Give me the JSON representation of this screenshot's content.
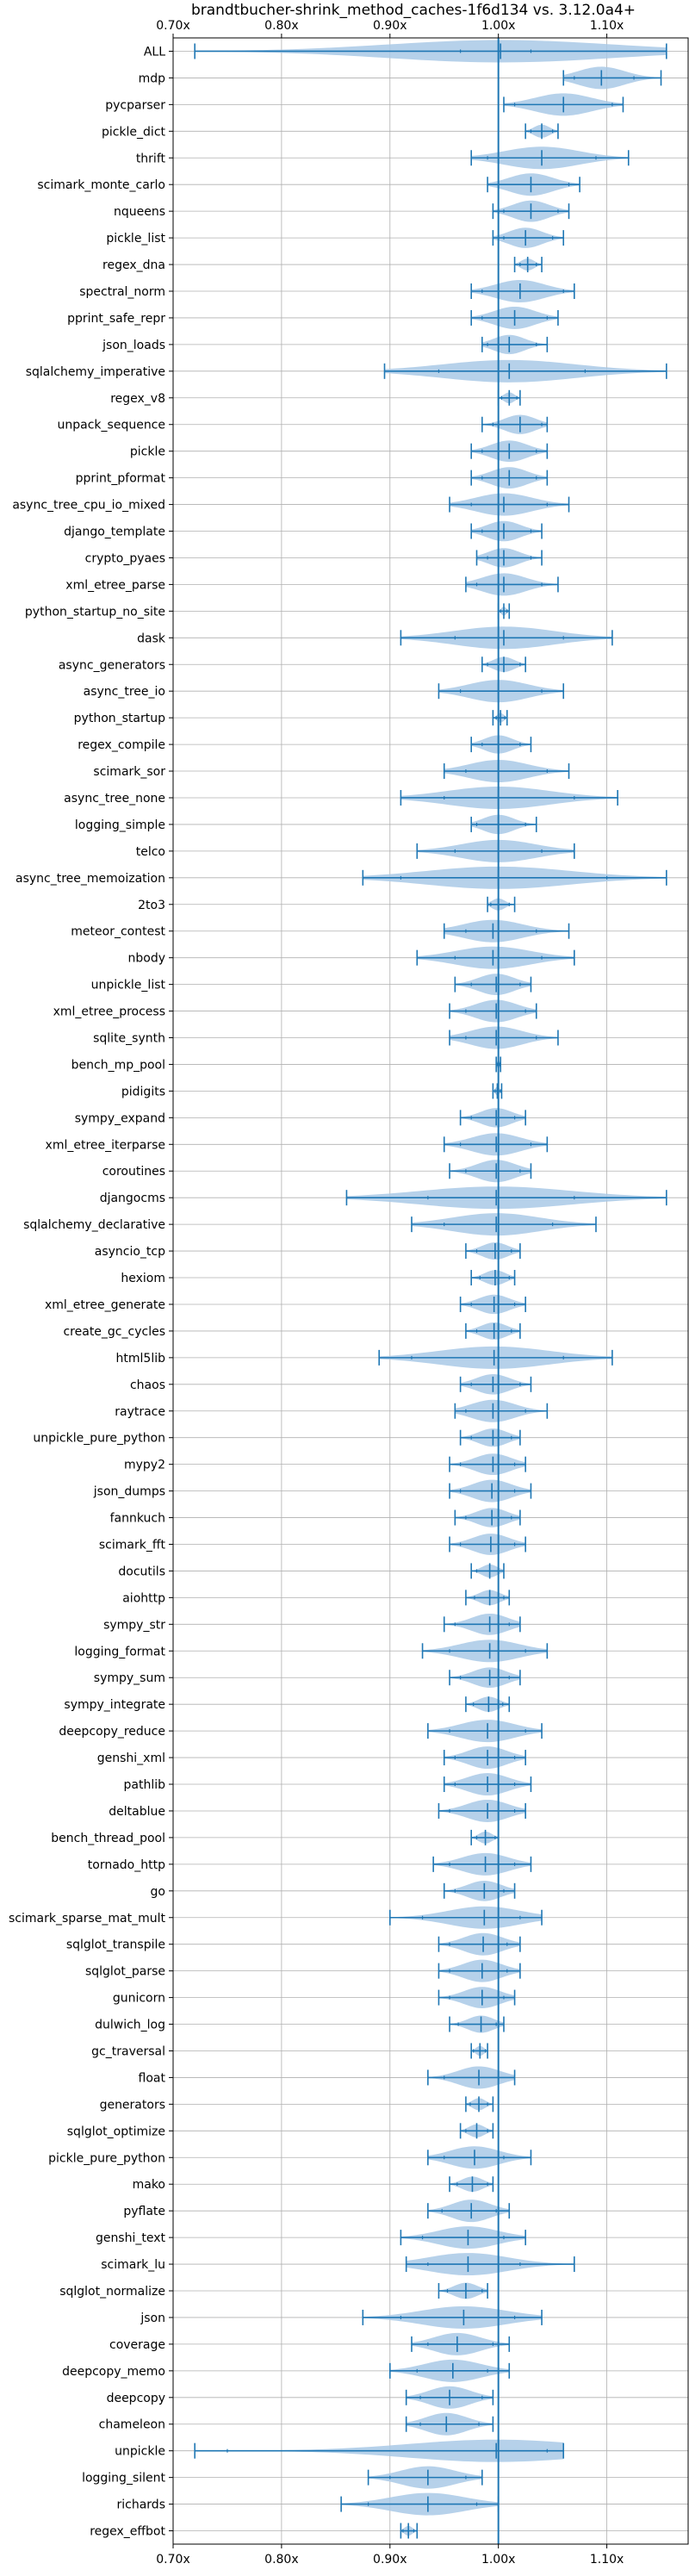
{
  "chart_data": {
    "type": "violin",
    "title": "brandtbucher-shrink_method_caches-1f6d134 vs. 3.12.0a4+",
    "x_ticks": [
      "0.70x",
      "0.80x",
      "0.90x",
      "1.00x",
      "1.10x"
    ],
    "x_tick_values": [
      0.7,
      0.8,
      0.9,
      1.0,
      1.1
    ],
    "xlim": [
      0.7,
      1.175
    ],
    "reference_line": 1.0,
    "grid": true,
    "colors": {
      "violin": "#a9c9e6",
      "line": "#1f77b4",
      "grid": "#b0b0b0"
    },
    "benchmarks": [
      {
        "name": "ALL",
        "min": 0.72,
        "max": 1.155,
        "median": 1.002,
        "lo": 0.965,
        "hi": 1.03
      },
      {
        "name": "mdp",
        "min": 1.06,
        "max": 1.15,
        "median": 1.095,
        "lo": 1.07,
        "hi": 1.125
      },
      {
        "name": "pycparser",
        "min": 1.005,
        "max": 1.115,
        "median": 1.06,
        "lo": 1.015,
        "hi": 1.105
      },
      {
        "name": "pickle_dict",
        "min": 1.025,
        "max": 1.055,
        "median": 1.04,
        "lo": 1.03,
        "hi": 1.05
      },
      {
        "name": "thrift",
        "min": 0.975,
        "max": 1.12,
        "median": 1.04,
        "lo": 0.99,
        "hi": 1.09
      },
      {
        "name": "scimark_monte_carlo",
        "min": 0.99,
        "max": 1.075,
        "median": 1.03,
        "lo": 1.0,
        "hi": 1.065
      },
      {
        "name": "nqueens",
        "min": 0.995,
        "max": 1.065,
        "median": 1.03,
        "lo": 1.005,
        "hi": 1.055
      },
      {
        "name": "pickle_list",
        "min": 0.995,
        "max": 1.06,
        "median": 1.025,
        "lo": 1.005,
        "hi": 1.05
      },
      {
        "name": "regex_dna",
        "min": 1.015,
        "max": 1.04,
        "median": 1.027,
        "lo": 1.02,
        "hi": 1.035
      },
      {
        "name": "spectral_norm",
        "min": 0.975,
        "max": 1.07,
        "median": 1.02,
        "lo": 0.985,
        "hi": 1.06
      },
      {
        "name": "pprint_safe_repr",
        "min": 0.975,
        "max": 1.055,
        "median": 1.015,
        "lo": 0.985,
        "hi": 1.045
      },
      {
        "name": "json_loads",
        "min": 0.985,
        "max": 1.045,
        "median": 1.01,
        "lo": 0.99,
        "hi": 1.035
      },
      {
        "name": "sqlalchemy_imperative",
        "min": 0.895,
        "max": 1.155,
        "median": 1.01,
        "lo": 0.945,
        "hi": 1.08
      },
      {
        "name": "regex_v8",
        "min": 1.0,
        "max": 1.02,
        "median": 1.01,
        "lo": 1.003,
        "hi": 1.017
      },
      {
        "name": "unpack_sequence",
        "min": 0.985,
        "max": 1.045,
        "median": 1.02,
        "lo": 0.995,
        "hi": 1.04
      },
      {
        "name": "pickle",
        "min": 0.975,
        "max": 1.045,
        "median": 1.01,
        "lo": 0.985,
        "hi": 1.035
      },
      {
        "name": "pprint_pformat",
        "min": 0.975,
        "max": 1.045,
        "median": 1.01,
        "lo": 0.985,
        "hi": 1.035
      },
      {
        "name": "async_tree_cpu_io_mixed",
        "min": 0.955,
        "max": 1.065,
        "median": 1.005,
        "lo": 0.975,
        "hi": 1.045
      },
      {
        "name": "django_template",
        "min": 0.975,
        "max": 1.04,
        "median": 1.005,
        "lo": 0.985,
        "hi": 1.03
      },
      {
        "name": "crypto_pyaes",
        "min": 0.98,
        "max": 1.04,
        "median": 1.005,
        "lo": 0.99,
        "hi": 1.03
      },
      {
        "name": "xml_etree_parse",
        "min": 0.97,
        "max": 1.055,
        "median": 1.005,
        "lo": 0.98,
        "hi": 1.04
      },
      {
        "name": "python_startup_no_site",
        "min": 1.0,
        "max": 1.01,
        "median": 1.005,
        "lo": 1.002,
        "hi": 1.008
      },
      {
        "name": "dask",
        "min": 0.91,
        "max": 1.105,
        "median": 1.005,
        "lo": 0.96,
        "hi": 1.06
      },
      {
        "name": "async_generators",
        "min": 0.985,
        "max": 1.025,
        "median": 1.005,
        "lo": 0.99,
        "hi": 1.02
      },
      {
        "name": "async_tree_io",
        "min": 0.945,
        "max": 1.06,
        "median": 1.0,
        "lo": 0.965,
        "hi": 1.04
      },
      {
        "name": "python_startup",
        "min": 0.995,
        "max": 1.008,
        "median": 1.002,
        "lo": 0.998,
        "hi": 1.006
      },
      {
        "name": "regex_compile",
        "min": 0.975,
        "max": 1.03,
        "median": 1.0,
        "lo": 0.985,
        "hi": 1.02
      },
      {
        "name": "scimark_sor",
        "min": 0.95,
        "max": 1.065,
        "median": 1.0,
        "lo": 0.97,
        "hi": 1.045
      },
      {
        "name": "async_tree_none",
        "min": 0.91,
        "max": 1.11,
        "median": 1.0,
        "lo": 0.95,
        "hi": 1.07
      },
      {
        "name": "logging_simple",
        "min": 0.975,
        "max": 1.035,
        "median": 1.0,
        "lo": 0.98,
        "hi": 1.025
      },
      {
        "name": "telco",
        "min": 0.925,
        "max": 1.07,
        "median": 1.0,
        "lo": 0.96,
        "hi": 1.04
      },
      {
        "name": "async_tree_memoization",
        "min": 0.875,
        "max": 1.155,
        "median": 1.0,
        "lo": 0.91,
        "hi": 1.1
      },
      {
        "name": "2to3",
        "min": 0.99,
        "max": 1.015,
        "median": 1.0,
        "lo": 0.993,
        "hi": 1.01
      },
      {
        "name": "meteor_contest",
        "min": 0.95,
        "max": 1.065,
        "median": 0.995,
        "lo": 0.97,
        "hi": 1.035
      },
      {
        "name": "nbody",
        "min": 0.925,
        "max": 1.07,
        "median": 0.995,
        "lo": 0.96,
        "hi": 1.04
      },
      {
        "name": "unpickle_list",
        "min": 0.96,
        "max": 1.03,
        "median": 0.998,
        "lo": 0.975,
        "hi": 1.02
      },
      {
        "name": "xml_etree_process",
        "min": 0.955,
        "max": 1.035,
        "median": 0.998,
        "lo": 0.97,
        "hi": 1.025
      },
      {
        "name": "sqlite_synth",
        "min": 0.955,
        "max": 1.055,
        "median": 0.998,
        "lo": 0.97,
        "hi": 1.035
      },
      {
        "name": "bench_mp_pool",
        "min": 0.998,
        "max": 1.002,
        "median": 1.0,
        "lo": 0.999,
        "hi": 1.001
      },
      {
        "name": "pidigits",
        "min": 0.995,
        "max": 1.003,
        "median": 0.999,
        "lo": 0.997,
        "hi": 1.002
      },
      {
        "name": "sympy_expand",
        "min": 0.965,
        "max": 1.025,
        "median": 0.998,
        "lo": 0.975,
        "hi": 1.015
      },
      {
        "name": "xml_etree_iterparse",
        "min": 0.95,
        "max": 1.045,
        "median": 0.998,
        "lo": 0.965,
        "hi": 1.03
      },
      {
        "name": "coroutines",
        "min": 0.955,
        "max": 1.03,
        "median": 0.998,
        "lo": 0.97,
        "hi": 1.02
      },
      {
        "name": "djangocms",
        "min": 0.86,
        "max": 1.155,
        "median": 0.998,
        "lo": 0.935,
        "hi": 1.07
      },
      {
        "name": "sqlalchemy_declarative",
        "min": 0.92,
        "max": 1.09,
        "median": 0.998,
        "lo": 0.95,
        "hi": 1.05
      },
      {
        "name": "asyncio_tcp",
        "min": 0.97,
        "max": 1.02,
        "median": 0.997,
        "lo": 0.98,
        "hi": 1.012
      },
      {
        "name": "hexiom",
        "min": 0.975,
        "max": 1.015,
        "median": 0.997,
        "lo": 0.983,
        "hi": 1.01
      },
      {
        "name": "xml_etree_generate",
        "min": 0.965,
        "max": 1.025,
        "median": 0.996,
        "lo": 0.975,
        "hi": 1.015
      },
      {
        "name": "create_gc_cycles",
        "min": 0.97,
        "max": 1.02,
        "median": 0.996,
        "lo": 0.98,
        "hi": 1.012
      },
      {
        "name": "html5lib",
        "min": 0.89,
        "max": 1.105,
        "median": 0.996,
        "lo": 0.92,
        "hi": 1.06
      },
      {
        "name": "chaos",
        "min": 0.965,
        "max": 1.03,
        "median": 0.995,
        "lo": 0.975,
        "hi": 1.02
      },
      {
        "name": "raytrace",
        "min": 0.96,
        "max": 1.045,
        "median": 0.995,
        "lo": 0.97,
        "hi": 1.025
      },
      {
        "name": "unpickle_pure_python",
        "min": 0.965,
        "max": 1.02,
        "median": 0.995,
        "lo": 0.975,
        "hi": 1.012
      },
      {
        "name": "mypy2",
        "min": 0.955,
        "max": 1.025,
        "median": 0.995,
        "lo": 0.965,
        "hi": 1.015
      },
      {
        "name": "json_dumps",
        "min": 0.955,
        "max": 1.03,
        "median": 0.994,
        "lo": 0.965,
        "hi": 1.015
      },
      {
        "name": "fannkuch",
        "min": 0.96,
        "max": 1.02,
        "median": 0.994,
        "lo": 0.97,
        "hi": 1.012
      },
      {
        "name": "scimark_fft",
        "min": 0.955,
        "max": 1.025,
        "median": 0.993,
        "lo": 0.965,
        "hi": 1.015
      },
      {
        "name": "docutils",
        "min": 0.975,
        "max": 1.005,
        "median": 0.992,
        "lo": 0.98,
        "hi": 1.0
      },
      {
        "name": "aiohttp",
        "min": 0.97,
        "max": 1.01,
        "median": 0.992,
        "lo": 0.978,
        "hi": 1.005
      },
      {
        "name": "sympy_str",
        "min": 0.95,
        "max": 1.02,
        "median": 0.992,
        "lo": 0.96,
        "hi": 1.01
      },
      {
        "name": "logging_format",
        "min": 0.93,
        "max": 1.045,
        "median": 0.992,
        "lo": 0.955,
        "hi": 1.025
      },
      {
        "name": "sympy_sum",
        "min": 0.955,
        "max": 1.02,
        "median": 0.992,
        "lo": 0.965,
        "hi": 1.01
      },
      {
        "name": "sympy_integrate",
        "min": 0.97,
        "max": 1.01,
        "median": 0.991,
        "lo": 0.977,
        "hi": 1.004
      },
      {
        "name": "deepcopy_reduce",
        "min": 0.935,
        "max": 1.04,
        "median": 0.99,
        "lo": 0.955,
        "hi": 1.025
      },
      {
        "name": "genshi_xml",
        "min": 0.95,
        "max": 1.025,
        "median": 0.99,
        "lo": 0.96,
        "hi": 1.015
      },
      {
        "name": "pathlib",
        "min": 0.95,
        "max": 1.03,
        "median": 0.99,
        "lo": 0.96,
        "hi": 1.015
      },
      {
        "name": "deltablue",
        "min": 0.945,
        "max": 1.025,
        "median": 0.99,
        "lo": 0.955,
        "hi": 1.015
      },
      {
        "name": "bench_thread_pool",
        "min": 0.975,
        "max": 1.0,
        "median": 0.988,
        "lo": 0.98,
        "hi": 0.997
      },
      {
        "name": "tornado_http",
        "min": 0.94,
        "max": 1.03,
        "median": 0.988,
        "lo": 0.955,
        "hi": 1.015
      },
      {
        "name": "go",
        "min": 0.95,
        "max": 1.015,
        "median": 0.987,
        "lo": 0.96,
        "hi": 1.005
      },
      {
        "name": "scimark_sparse_mat_mult",
        "min": 0.9,
        "max": 1.04,
        "median": 0.987,
        "lo": 0.93,
        "hi": 1.02
      },
      {
        "name": "sqlglot_transpile",
        "min": 0.945,
        "max": 1.02,
        "median": 0.986,
        "lo": 0.955,
        "hi": 1.008
      },
      {
        "name": "sqlglot_parse",
        "min": 0.945,
        "max": 1.02,
        "median": 0.985,
        "lo": 0.955,
        "hi": 1.008
      },
      {
        "name": "gunicorn",
        "min": 0.945,
        "max": 1.015,
        "median": 0.985,
        "lo": 0.955,
        "hi": 1.005
      },
      {
        "name": "dulwich_log",
        "min": 0.955,
        "max": 1.005,
        "median": 0.984,
        "lo": 0.963,
        "hi": 0.998
      },
      {
        "name": "gc_traversal",
        "min": 0.975,
        "max": 0.99,
        "median": 0.983,
        "lo": 0.977,
        "hi": 0.988
      },
      {
        "name": "float",
        "min": 0.935,
        "max": 1.015,
        "median": 0.982,
        "lo": 0.95,
        "hi": 1.0
      },
      {
        "name": "generators",
        "min": 0.97,
        "max": 0.995,
        "median": 0.982,
        "lo": 0.974,
        "hi": 0.99
      },
      {
        "name": "sqlglot_optimize",
        "min": 0.965,
        "max": 0.995,
        "median": 0.98,
        "lo": 0.97,
        "hi": 0.99
      },
      {
        "name": "pickle_pure_python",
        "min": 0.935,
        "max": 1.03,
        "median": 0.978,
        "lo": 0.95,
        "hi": 1.005
      },
      {
        "name": "mako",
        "min": 0.955,
        "max": 0.995,
        "median": 0.976,
        "lo": 0.962,
        "hi": 0.99
      },
      {
        "name": "pyflate",
        "min": 0.935,
        "max": 1.01,
        "median": 0.975,
        "lo": 0.948,
        "hi": 0.998
      },
      {
        "name": "genshi_text",
        "min": 0.91,
        "max": 1.025,
        "median": 0.972,
        "lo": 0.93,
        "hi": 1.005
      },
      {
        "name": "scimark_lu",
        "min": 0.915,
        "max": 1.07,
        "median": 0.972,
        "lo": 0.935,
        "hi": 1.02
      },
      {
        "name": "sqlglot_normalize",
        "min": 0.945,
        "max": 0.99,
        "median": 0.97,
        "lo": 0.953,
        "hi": 0.985
      },
      {
        "name": "json",
        "min": 0.875,
        "max": 1.04,
        "median": 0.968,
        "lo": 0.91,
        "hi": 1.015
      },
      {
        "name": "coverage",
        "min": 0.92,
        "max": 1.01,
        "median": 0.962,
        "lo": 0.935,
        "hi": 0.995
      },
      {
        "name": "deepcopy_memo",
        "min": 0.9,
        "max": 1.01,
        "median": 0.958,
        "lo": 0.925,
        "hi": 0.99
      },
      {
        "name": "deepcopy",
        "min": 0.915,
        "max": 0.995,
        "median": 0.955,
        "lo": 0.928,
        "hi": 0.985
      },
      {
        "name": "chameleon",
        "min": 0.915,
        "max": 0.995,
        "median": 0.952,
        "lo": 0.928,
        "hi": 0.982
      },
      {
        "name": "unpickle",
        "min": 0.72,
        "max": 1.06,
        "median": 0.998,
        "lo": 0.75,
        "hi": 1.045
      },
      {
        "name": "logging_silent",
        "min": 0.88,
        "max": 0.985,
        "median": 0.935,
        "lo": 0.9,
        "hi": 0.97
      },
      {
        "name": "richards",
        "min": 0.855,
        "max": 1.0,
        "median": 0.935,
        "lo": 0.88,
        "hi": 0.98
      },
      {
        "name": "regex_effbot",
        "min": 0.91,
        "max": 0.925,
        "median": 0.917,
        "lo": 0.912,
        "hi": 0.922
      }
    ]
  }
}
